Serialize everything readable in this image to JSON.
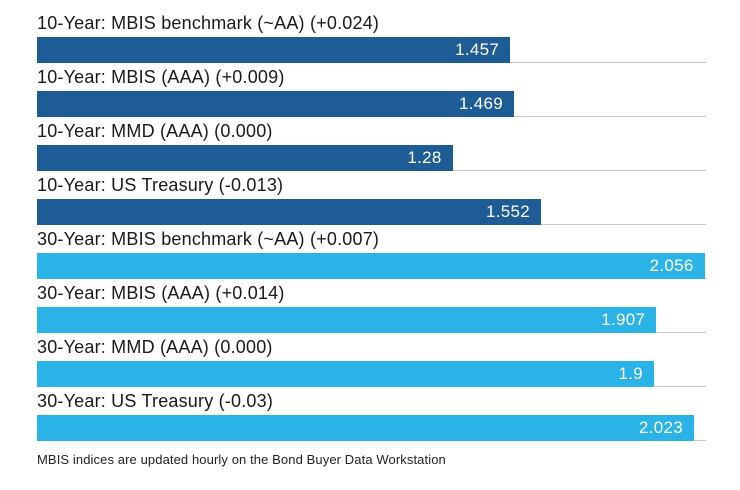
{
  "chart_data": {
    "type": "bar",
    "orientation": "horizontal",
    "title": "",
    "xlabel": "",
    "ylabel": "",
    "xlim": [
      0,
      2.06
    ],
    "grid": false,
    "legend_position": "none",
    "series_colors": {
      "10-Year": "#1d5c94",
      "30-Year": "#29b3e6"
    },
    "rule_color": "#c9c9c9",
    "bars": [
      {
        "label": "10-Year: MBIS benchmark (~AA) (+0.024)",
        "group": "10-Year",
        "value": 1.457,
        "display": "1.457"
      },
      {
        "label": "10-Year: MBIS (AAA) (+0.009)",
        "group": "10-Year",
        "value": 1.469,
        "display": "1.469"
      },
      {
        "label": "10-Year: MMD (AAA) (0.000)",
        "group": "10-Year",
        "value": 1.28,
        "display": "1.28"
      },
      {
        "label": "10-Year: US Treasury (-0.013)",
        "group": "10-Year",
        "value": 1.552,
        "display": "1.552"
      },
      {
        "label": "30-Year: MBIS benchmark (~AA) (+0.007)",
        "group": "30-Year",
        "value": 2.056,
        "display": "2.056"
      },
      {
        "label": "30-Year: MBIS (AAA) (+0.014)",
        "group": "30-Year",
        "value": 1.907,
        "display": "1.907"
      },
      {
        "label": "30-Year: MMD (AAA) (0.000)",
        "group": "30-Year",
        "value": 1.9,
        "display": "1.9"
      },
      {
        "label": "30-Year: US Treasury (-0.03)",
        "group": "30-Year",
        "value": 2.023,
        "display": "2.023"
      }
    ],
    "footnote": "MBIS indices are updated hourly on the Bond Buyer Data Workstation"
  }
}
